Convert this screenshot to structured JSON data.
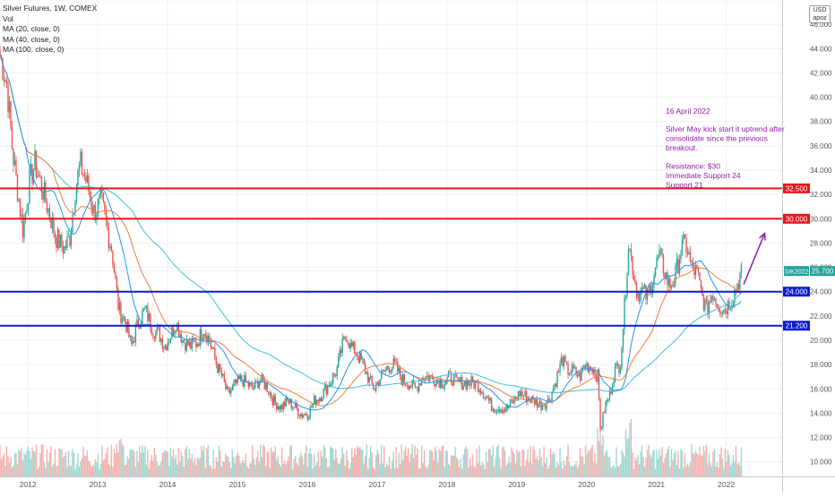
{
  "chart_data": {
    "type": "candlestick",
    "title": "Silver Futures, 1W, COMEX",
    "indicators": [
      "Vol",
      "MA (20, close, 0)",
      "MA (40, close, 0)",
      "MA (100, close, 0)"
    ],
    "currency_box": [
      "USD",
      "apoz"
    ],
    "ylim": [
      8.8,
      48.0
    ],
    "y_ticks": [
      10,
      12,
      14,
      16,
      18,
      20,
      22,
      24,
      26,
      28,
      30,
      32,
      34,
      36,
      38,
      40,
      42,
      44,
      46,
      48
    ],
    "y_tick_labels": [
      "10.000",
      "12.000",
      "14.000",
      "16.000",
      "18.000",
      "20.000",
      "22.000",
      "24.000",
      "26.000",
      "28.000",
      "30.000",
      "32.000",
      "34.000",
      "36.000",
      "38.000",
      "40.000",
      "42.000",
      "44.000",
      "46.000",
      "48.000"
    ],
    "x_range": [
      2011.6,
      2022.8
    ],
    "x_ticks": [
      2012,
      2013,
      2014,
      2015,
      2016,
      2017,
      2018,
      2019,
      2020,
      2021,
      2022
    ],
    "x_tick_labels": [
      "2012",
      "2013",
      "2014",
      "2015",
      "2016",
      "2017",
      "2018",
      "2019",
      "2020",
      "2021",
      "2022"
    ],
    "price_path": [
      [
        2011.6,
        43.5
      ],
      [
        2011.7,
        41.0
      ],
      [
        2011.78,
        35.5
      ],
      [
        2011.86,
        32.0
      ],
      [
        2011.93,
        29.0
      ],
      [
        2012.02,
        33.0
      ],
      [
        2012.1,
        34.5
      ],
      [
        2012.18,
        33.0
      ],
      [
        2012.28,
        31.0
      ],
      [
        2012.4,
        28.5
      ],
      [
        2012.52,
        27.5
      ],
      [
        2012.6,
        28.5
      ],
      [
        2012.68,
        32.5
      ],
      [
        2012.75,
        34.5
      ],
      [
        2012.84,
        33.0
      ],
      [
        2012.95,
        30.5
      ],
      [
        2013.05,
        31.5
      ],
      [
        2013.12,
        29.5
      ],
      [
        2013.2,
        27.5
      ],
      [
        2013.3,
        22.5
      ],
      [
        2013.4,
        21.5
      ],
      [
        2013.48,
        19.5
      ],
      [
        2013.58,
        21.5
      ],
      [
        2013.68,
        22.5
      ],
      [
        2013.78,
        21.0
      ],
      [
        2013.88,
        20.5
      ],
      [
        2013.96,
        19.5
      ],
      [
        2014.05,
        20.5
      ],
      [
        2014.12,
        21.5
      ],
      [
        2014.22,
        20.0
      ],
      [
        2014.32,
        19.5
      ],
      [
        2014.42,
        19.8
      ],
      [
        2014.52,
        21.0
      ],
      [
        2014.6,
        20.0
      ],
      [
        2014.7,
        18.0
      ],
      [
        2014.78,
        17.0
      ],
      [
        2014.86,
        15.5
      ],
      [
        2014.95,
        16.2
      ],
      [
        2015.05,
        16.8
      ],
      [
        2015.12,
        16.5
      ],
      [
        2015.22,
        16.0
      ],
      [
        2015.32,
        16.8
      ],
      [
        2015.42,
        16.2
      ],
      [
        2015.52,
        15.0
      ],
      [
        2015.62,
        14.5
      ],
      [
        2015.72,
        15.0
      ],
      [
        2015.82,
        14.5
      ],
      [
        2015.92,
        13.9
      ],
      [
        2016.02,
        14.0
      ],
      [
        2016.1,
        15.0
      ],
      [
        2016.2,
        15.5
      ],
      [
        2016.32,
        16.5
      ],
      [
        2016.42,
        17.5
      ],
      [
        2016.5,
        19.5
      ],
      [
        2016.56,
        20.5
      ],
      [
        2016.62,
        19.5
      ],
      [
        2016.7,
        19.0
      ],
      [
        2016.8,
        18.0
      ],
      [
        2016.88,
        16.8
      ],
      [
        2016.96,
        16.0
      ],
      [
        2017.05,
        17.0
      ],
      [
        2017.15,
        17.8
      ],
      [
        2017.25,
        18.0
      ],
      [
        2017.35,
        16.8
      ],
      [
        2017.45,
        16.5
      ],
      [
        2017.55,
        16.0
      ],
      [
        2017.65,
        17.0
      ],
      [
        2017.75,
        17.0
      ],
      [
        2017.85,
        16.8
      ],
      [
        2017.95,
        16.5
      ],
      [
        2018.05,
        17.0
      ],
      [
        2018.15,
        16.5
      ],
      [
        2018.25,
        16.5
      ],
      [
        2018.35,
        16.5
      ],
      [
        2018.45,
        16.3
      ],
      [
        2018.55,
        15.5
      ],
      [
        2018.65,
        14.5
      ],
      [
        2018.75,
        14.5
      ],
      [
        2018.85,
        14.3
      ],
      [
        2018.95,
        15.0
      ],
      [
        2019.05,
        15.7
      ],
      [
        2019.15,
        15.3
      ],
      [
        2019.25,
        15.0
      ],
      [
        2019.35,
        14.7
      ],
      [
        2019.45,
        15.0
      ],
      [
        2019.55,
        16.5
      ],
      [
        2019.65,
        18.5
      ],
      [
        2019.72,
        17.5
      ],
      [
        2019.8,
        17.5
      ],
      [
        2019.9,
        17.0
      ],
      [
        2019.98,
        18.0
      ],
      [
        2020.08,
        17.8
      ],
      [
        2020.16,
        17.0
      ],
      [
        2020.2,
        12.5
      ],
      [
        2020.26,
        14.5
      ],
      [
        2020.33,
        15.5
      ],
      [
        2020.4,
        17.5
      ],
      [
        2020.48,
        18.0
      ],
      [
        2020.54,
        22.5
      ],
      [
        2020.6,
        28.0
      ],
      [
        2020.66,
        26.0
      ],
      [
        2020.72,
        24.0
      ],
      [
        2020.8,
        24.0
      ],
      [
        2020.88,
        23.5
      ],
      [
        2020.96,
        25.5
      ],
      [
        2021.04,
        27.0
      ],
      [
        2021.1,
        26.0
      ],
      [
        2021.18,
        24.5
      ],
      [
        2021.26,
        25.0
      ],
      [
        2021.35,
        27.5
      ],
      [
        2021.42,
        28.0
      ],
      [
        2021.5,
        26.0
      ],
      [
        2021.58,
        25.5
      ],
      [
        2021.66,
        23.5
      ],
      [
        2021.72,
        22.5
      ],
      [
        2021.8,
        24.0
      ],
      [
        2021.88,
        23.0
      ],
      [
        2021.96,
        22.5
      ],
      [
        2022.04,
        23.0
      ],
      [
        2022.12,
        24.0
      ],
      [
        2022.18,
        25.0
      ],
      [
        2022.22,
        25.7
      ]
    ],
    "horizontal_levels": [
      {
        "value": 32.5,
        "label": "32.500",
        "color": "#e8161b"
      },
      {
        "value": 30.0,
        "label": "30.000",
        "color": "#e8161b"
      },
      {
        "value": 24.0,
        "label": "24.000",
        "color": "#0c1bd4"
      },
      {
        "value": 21.2,
        "label": "21.200",
        "color": "#0c1bd4"
      }
    ],
    "last_price": {
      "label": "SIK2022",
      "value": 25.7,
      "value_label": "25.700",
      "color": "#22a39a"
    },
    "annotation": {
      "date_line": "16 April 2022",
      "body_lines": [
        "Silver May kick start it uptrend after",
        "consolidate since the previous",
        "breakout."
      ],
      "levels_lines": [
        "Resistance: $30",
        "Immediate Support 24",
        "Support 21"
      ],
      "color": "#8e1da6"
    },
    "forecast_arrow": {
      "x0": 2022.25,
      "y0": 24.6,
      "x1": 2022.55,
      "y1": 28.8,
      "color": "#8e1da6"
    },
    "ma_colors": {
      "MA 20": "#2196f3",
      "MA 40": "#f57c3a",
      "MA 100": "#3fc1d6"
    },
    "candle_colors": {
      "up": "#26a69a",
      "down": "#ef5350"
    },
    "volume_colors": {
      "up": "#9fd8d2",
      "down": "#f7b0ae"
    },
    "grid": true
  }
}
